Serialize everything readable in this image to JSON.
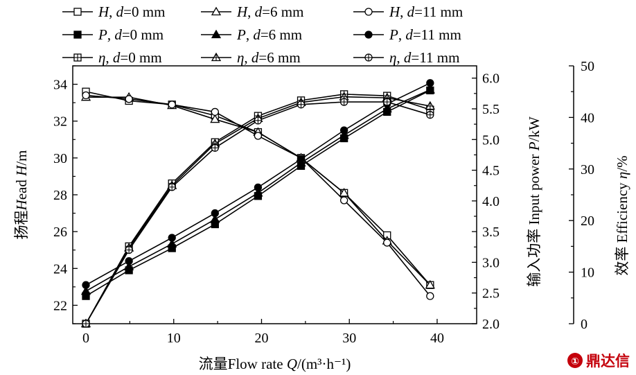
{
  "chart_data": {
    "type": "line",
    "xlabel": "流量Flow rate Q/(m³·h⁻¹)",
    "x": [
      0,
      4.9,
      9.8,
      14.7,
      19.6,
      24.5,
      29.4,
      34.3,
      39.2
    ],
    "x_ticks": [
      "0",
      "10",
      "20",
      "30",
      "40"
    ],
    "xlim": [
      -1.5,
      44.5
    ],
    "axes": [
      {
        "id": "H",
        "label": "扬程Head H/m",
        "side": "left",
        "ylim": [
          21,
          35
        ],
        "ticks": [
          "22",
          "24",
          "26",
          "28",
          "30",
          "32",
          "34"
        ]
      },
      {
        "id": "P",
        "label": "输入功率 Input power P/kW",
        "side": "right",
        "ylim": [
          2.0,
          6.2
        ],
        "ticks": [
          "2.0",
          "2.5",
          "3.0",
          "3.5",
          "4.0",
          "4.5",
          "5.0",
          "5.5",
          "6.0"
        ]
      },
      {
        "id": "eta",
        "label": "效率 Efficiency η/%",
        "side": "right-outer",
        "ylim": [
          0,
          50
        ],
        "ticks": [
          "0",
          "10",
          "20",
          "30",
          "40",
          "50"
        ]
      }
    ],
    "series": [
      {
        "name": "H, d=0 mm",
        "axis": "H",
        "marker": "square-open",
        "values": [
          33.6,
          33.1,
          32.9,
          32.3,
          31.4,
          30.0,
          28.1,
          25.8,
          23.1
        ]
      },
      {
        "name": "H, d=6 mm",
        "axis": "H",
        "marker": "triangle-open",
        "values": [
          33.3,
          33.3,
          32.85,
          32.1,
          31.4,
          30.0,
          28.1,
          25.5,
          23.1
        ]
      },
      {
        "name": "H, d=11 mm",
        "axis": "H",
        "marker": "circle-open",
        "values": [
          33.4,
          33.2,
          32.9,
          32.5,
          31.2,
          30.0,
          27.7,
          25.4,
          22.5
        ]
      },
      {
        "name": "P, d=0 mm",
        "axis": "P",
        "marker": "square-filled",
        "values": [
          2.45,
          2.87,
          3.23,
          3.62,
          4.08,
          4.57,
          5.02,
          5.45,
          5.8
        ]
      },
      {
        "name": "P, d=6 mm",
        "axis": "P",
        "marker": "triangle-filled",
        "values": [
          2.53,
          2.93,
          3.3,
          3.7,
          4.13,
          4.62,
          5.07,
          5.5,
          5.81
        ]
      },
      {
        "name": "P, d=11 mm",
        "axis": "P",
        "marker": "circle-filled",
        "values": [
          2.63,
          3.02,
          3.4,
          3.8,
          4.22,
          4.68,
          5.15,
          5.58,
          5.92
        ]
      },
      {
        "name": "η, d=0 mm",
        "axis": "eta",
        "marker": "square-plus",
        "values": [
          0,
          15.0,
          27.2,
          35.2,
          40.3,
          43.3,
          44.5,
          44.2,
          41.5
        ]
      },
      {
        "name": "η, d=6 mm",
        "axis": "eta",
        "marker": "triangle-plus",
        "values": [
          0,
          14.7,
          26.8,
          34.9,
          39.8,
          42.9,
          44.0,
          43.8,
          42.2
        ]
      },
      {
        "name": "η, d=11 mm",
        "axis": "eta",
        "marker": "circle-plus",
        "values": [
          0,
          14.3,
          26.5,
          34.1,
          39.4,
          42.5,
          43.0,
          43.0,
          40.5
        ]
      }
    ],
    "legend_position": "top",
    "grid": false
  },
  "watermark": "鼎达信"
}
